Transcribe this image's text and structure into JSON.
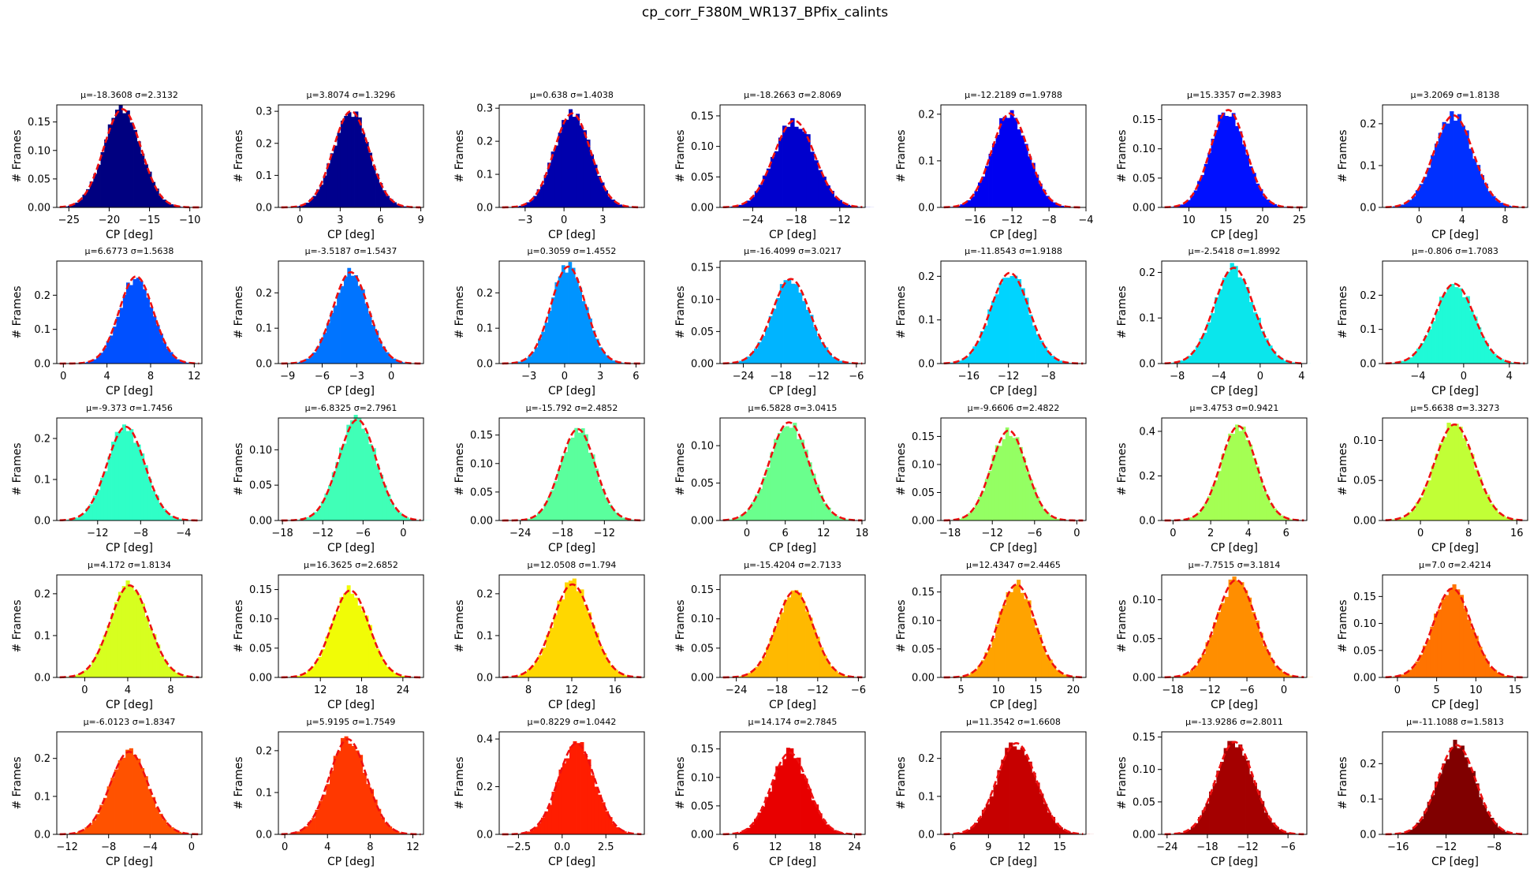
{
  "suptitle": "cp_corr_F380M_WR137_BPfix_calints",
  "xlabel": "CP [deg]",
  "ylabel": "# Frames",
  "fit_line_color": "#ee1111",
  "chart_data": [
    {
      "type": "bar",
      "title": "μ=-18.3608 σ=2.3132",
      "mu": -18.3608,
      "sigma": 2.3132,
      "color": "#000080",
      "xlim": [
        -26.5,
        -8.5
      ],
      "xticks": [
        -25,
        -20,
        -15,
        -10
      ],
      "ylim": [
        0,
        0.18
      ],
      "yticks": [
        0,
        0.05,
        0.1,
        0.15
      ],
      "yticklabels": [
        "0.00",
        "0.05",
        "0.10",
        "0.15"
      ],
      "xlabel": "CP [deg]",
      "ylabel": "# Frames"
    },
    {
      "type": "bar",
      "title": "μ=3.8074 σ=1.3296",
      "mu": 3.8074,
      "sigma": 1.3296,
      "color": "#00008d",
      "xlim": [
        -1.6,
        9.2
      ],
      "xticks": [
        0,
        3,
        6,
        9
      ],
      "ylim": [
        0,
        0.32
      ],
      "yticks": [
        0,
        0.1,
        0.2,
        0.3
      ],
      "yticklabels": [
        "0.0",
        "0.1",
        "0.2",
        "0.3"
      ],
      "xlabel": "CP [deg]",
      "ylabel": "# Frames"
    },
    {
      "type": "bar",
      "title": "μ=0.638 σ=1.4038",
      "mu": 0.638,
      "sigma": 1.4038,
      "color": "#0000ad",
      "xlim": [
        -5.0,
        6.2
      ],
      "xticks": [
        -3,
        0,
        3
      ],
      "ylim": [
        0,
        0.31
      ],
      "yticks": [
        0,
        0.1,
        0.2,
        0.3
      ],
      "yticklabels": [
        "0.0",
        "0.1",
        "0.2",
        "0.3"
      ],
      "xlabel": "CP [deg]",
      "ylabel": "# Frames"
    },
    {
      "type": "bar",
      "title": "μ=-18.2663 σ=2.8069",
      "mu": -18.2663,
      "sigma": 2.8069,
      "color": "#0000cd",
      "xlim": [
        -28.5,
        -8.5
      ],
      "xticks": [
        -24,
        -18,
        -12
      ],
      "ylim": [
        0,
        0.168
      ],
      "yticks": [
        0,
        0.05,
        0.1,
        0.15
      ],
      "yticklabels": [
        "0.00",
        "0.05",
        "0.10",
        "0.15"
      ],
      "xlabel": "CP [deg]",
      "ylabel": "# Frames"
    },
    {
      "type": "bar",
      "title": "μ=-12.2189 σ=1.9788",
      "mu": -12.2189,
      "sigma": 1.9788,
      "color": "#0000f1",
      "xlim": [
        -19.7,
        -4.0
      ],
      "xticks": [
        -16,
        -12,
        -8,
        -4
      ],
      "ylim": [
        0,
        0.22
      ],
      "yticks": [
        0,
        0.1,
        0.2
      ],
      "yticklabels": [
        "0.0",
        "0.1",
        "0.2"
      ],
      "xlabel": "CP [deg]",
      "ylabel": "# Frames"
    },
    {
      "type": "bar",
      "title": "μ=15.3357 σ=2.3983",
      "mu": 15.3357,
      "sigma": 2.3983,
      "color": "#0010ff",
      "xlim": [
        6.3,
        26.0
      ],
      "xticks": [
        10,
        15,
        20,
        25
      ],
      "ylim": [
        0,
        0.175
      ],
      "yticks": [
        0,
        0.05,
        0.1,
        0.15
      ],
      "yticklabels": [
        "0.00",
        "0.05",
        "0.10",
        "0.15"
      ],
      "xlabel": "CP [deg]",
      "ylabel": "# Frames"
    },
    {
      "type": "bar",
      "title": "μ=3.2069 σ=1.8138",
      "mu": 3.2069,
      "sigma": 1.8138,
      "color": "#0030ff",
      "xlim": [
        -3.4,
        10.1
      ],
      "xticks": [
        0,
        4,
        8
      ],
      "ylim": [
        0,
        0.245
      ],
      "yticks": [
        0,
        0.1,
        0.2
      ],
      "yticklabels": [
        "0.0",
        "0.1",
        "0.2"
      ],
      "xlabel": "CP [deg]",
      "ylabel": "# Frames"
    },
    {
      "type": "bar",
      "title": "μ=6.6773 σ=1.5638",
      "mu": 6.6773,
      "sigma": 1.5638,
      "color": "#0050ff",
      "xlim": [
        -0.6,
        12.7
      ],
      "xticks": [
        0,
        4,
        8,
        12
      ],
      "ylim": [
        0,
        0.3
      ],
      "yticks": [
        0,
        0.1,
        0.2
      ],
      "yticklabels": [
        "0.0",
        "0.1",
        "0.2"
      ],
      "xlabel": "CP [deg]",
      "ylabel": "# Frames"
    },
    {
      "type": "bar",
      "title": "μ=-3.5187 σ=1.5437",
      "mu": -3.5187,
      "sigma": 1.5437,
      "color": "#0074ff",
      "xlim": [
        -9.8,
        2.8
      ],
      "xticks": [
        -9,
        -6,
        -3,
        0
      ],
      "ylim": [
        0,
        0.29
      ],
      "yticks": [
        0,
        0.1,
        0.2
      ],
      "yticklabels": [
        "0.0",
        "0.1",
        "0.2"
      ],
      "xlabel": "CP [deg]",
      "ylabel": "# Frames"
    },
    {
      "type": "bar",
      "title": "μ=0.3059 σ=1.4552",
      "mu": 0.3059,
      "sigma": 1.4552,
      "color": "#0094ff",
      "xlim": [
        -5.5,
        6.7
      ],
      "xticks": [
        -3,
        0,
        3,
        6
      ],
      "ylim": [
        0,
        0.29
      ],
      "yticks": [
        0,
        0.1,
        0.2
      ],
      "yticklabels": [
        "0.0",
        "0.1",
        "0.2"
      ],
      "xlabel": "CP [deg]",
      "ylabel": "# Frames"
    },
    {
      "type": "bar",
      "title": "μ=-16.4099 σ=3.0217",
      "mu": -16.4099,
      "sigma": 3.0217,
      "color": "#00b4ff",
      "xlim": [
        -27.7,
        -4.6
      ],
      "xticks": [
        -24,
        -18,
        -12,
        -6
      ],
      "ylim": [
        0,
        0.16
      ],
      "yticks": [
        0,
        0.05,
        0.1,
        0.15
      ],
      "yticklabels": [
        "0.00",
        "0.05",
        "0.10",
        "0.15"
      ],
      "xlabel": "CP [deg]",
      "ylabel": "# Frames"
    },
    {
      "type": "bar",
      "title": "μ=-11.8543 σ=1.9188",
      "mu": -11.8543,
      "sigma": 1.9188,
      "color": "#00d4ff",
      "xlim": [
        -18.8,
        -4.2
      ],
      "xticks": [
        -16,
        -12,
        -8
      ],
      "ylim": [
        0,
        0.235
      ],
      "yticks": [
        0,
        0.1,
        0.2
      ],
      "yticklabels": [
        "0.0",
        "0.1",
        "0.2"
      ],
      "xlabel": "CP [deg]",
      "ylabel": "# Frames"
    },
    {
      "type": "bar",
      "title": "μ=-2.5418 σ=1.8992",
      "mu": -2.5418,
      "sigma": 1.8992,
      "color": "#0ae6ec",
      "xlim": [
        -9.5,
        4.5
      ],
      "xticks": [
        -8,
        -4,
        0,
        4
      ],
      "ylim": [
        0,
        0.225
      ],
      "yticks": [
        0,
        0.1,
        0.2
      ],
      "yticklabels": [
        "0.0",
        "0.1",
        "0.2"
      ],
      "xlabel": "CP [deg]",
      "ylabel": "# Frames"
    },
    {
      "type": "bar",
      "title": "μ=-0.806 σ=1.7083",
      "mu": -0.806,
      "sigma": 1.7083,
      "color": "#1ffad7",
      "xlim": [
        -7.1,
        5.6
      ],
      "xticks": [
        -4,
        0,
        4
      ],
      "ylim": [
        0,
        0.3
      ],
      "yticks": [
        0,
        0.1,
        0.2
      ],
      "yticklabels": [
        "0.0",
        "0.1",
        "0.2"
      ],
      "xlabel": "CP [deg]",
      "ylabel": "# Frames"
    },
    {
      "type": "bar",
      "title": "μ=-9.373 σ=1.7456",
      "mu": -9.373,
      "sigma": 1.7456,
      "color": "#2fffc7",
      "xlim": [
        -15.8,
        -2.3
      ],
      "xticks": [
        -12,
        -8,
        -4
      ],
      "ylim": [
        0,
        0.25
      ],
      "yticks": [
        0,
        0.1,
        0.2
      ],
      "yticklabels": [
        "0.0",
        "0.1",
        "0.2"
      ],
      "xlabel": "CP [deg]",
      "ylabel": "# Frames"
    },
    {
      "type": "bar",
      "title": "μ=-6.8325 σ=2.7961",
      "mu": -6.8325,
      "sigma": 2.7961,
      "color": "#40ffb7",
      "xlim": [
        -18.6,
        3.0
      ],
      "xticks": [
        -18,
        -12,
        -6,
        0
      ],
      "ylim": [
        0,
        0.145
      ],
      "yticks": [
        0,
        0.05,
        0.1
      ],
      "yticklabels": [
        "0.00",
        "0.05",
        "0.10"
      ],
      "xlabel": "CP [deg]",
      "ylabel": "# Frames"
    },
    {
      "type": "bar",
      "title": "μ=-15.792 σ=2.4852",
      "mu": -15.792,
      "sigma": 2.4852,
      "color": "#5aff9d",
      "xlim": [
        -27.0,
        -6.3
      ],
      "xticks": [
        -24,
        -18,
        -12
      ],
      "ylim": [
        0,
        0.18
      ],
      "yticks": [
        0,
        0.05,
        0.1,
        0.15
      ],
      "yticklabels": [
        "0.00",
        "0.05",
        "0.10",
        "0.15"
      ],
      "xlabel": "CP [deg]",
      "ylabel": "# Frames"
    },
    {
      "type": "bar",
      "title": "μ=6.5828 σ=3.0415",
      "mu": 6.5828,
      "sigma": 3.0415,
      "color": "#6aff8d",
      "xlim": [
        -4.2,
        18.5
      ],
      "xticks": [
        0,
        6,
        12,
        18
      ],
      "ylim": [
        0,
        0.137
      ],
      "yticks": [
        0,
        0.05,
        0.1
      ],
      "yticklabels": [
        "0.00",
        "0.05",
        "0.10"
      ],
      "xlabel": "CP [deg]",
      "ylabel": "# Frames"
    },
    {
      "type": "bar",
      "title": "μ=-9.6606 σ=2.4822",
      "mu": -9.6606,
      "sigma": 2.4822,
      "color": "#94ff63",
      "xlim": [
        -19.3,
        1.3
      ],
      "xticks": [
        -18,
        -12,
        -6,
        0
      ],
      "ylim": [
        0,
        0.183
      ],
      "yticks": [
        0,
        0.05,
        0.1,
        0.15
      ],
      "yticklabels": [
        "0.00",
        "0.05",
        "0.10",
        "0.15"
      ],
      "xlabel": "CP [deg]",
      "ylabel": "# Frames"
    },
    {
      "type": "bar",
      "title": "μ=3.4753 σ=0.9421",
      "mu": 3.4753,
      "sigma": 0.9421,
      "color": "#a4ff53",
      "xlim": [
        -0.6,
        7.1
      ],
      "xticks": [
        0,
        2,
        4,
        6
      ],
      "ylim": [
        0,
        0.46
      ],
      "yticks": [
        0,
        0.2,
        0.4
      ],
      "yticklabels": [
        "0.0",
        "0.2",
        "0.4"
      ],
      "xlabel": "CP [deg]",
      "ylabel": "# Frames"
    },
    {
      "type": "bar",
      "title": "μ=5.6638 σ=3.3273",
      "mu": 5.6638,
      "sigma": 3.3273,
      "color": "#c1ff36",
      "xlim": [
        -6.3,
        17.8
      ],
      "xticks": [
        0,
        8,
        16
      ],
      "ylim": [
        0,
        0.128
      ],
      "yticks": [
        0,
        0.05,
        0.1
      ],
      "yticklabels": [
        "0.00",
        "0.05",
        "0.10"
      ],
      "xlabel": "CP [deg]",
      "ylabel": "# Frames"
    },
    {
      "type": "bar",
      "title": "μ=4.172 σ=1.8134",
      "mu": 4.172,
      "sigma": 1.8134,
      "color": "#d7ff1f",
      "xlim": [
        -2.6,
        10.9
      ],
      "xticks": [
        0,
        4,
        8
      ],
      "ylim": [
        0,
        0.245
      ],
      "yticks": [
        0,
        0.1,
        0.2
      ],
      "yticklabels": [
        "0.0",
        "0.1",
        "0.2"
      ],
      "xlabel": "CP [deg]",
      "ylabel": "# Frames"
    },
    {
      "type": "bar",
      "title": "μ=16.3625 σ=2.6852",
      "mu": 16.3625,
      "sigma": 2.6852,
      "color": "#f1fc06",
      "xlim": [
        5.9,
        27.0
      ],
      "xticks": [
        12,
        18,
        24
      ],
      "ylim": [
        0,
        0.175
      ],
      "yticks": [
        0,
        0.05,
        0.1,
        0.15
      ],
      "yticklabels": [
        "0.00",
        "0.05",
        "0.10",
        "0.15"
      ],
      "xlabel": "CP [deg]",
      "ylabel": "# Frames"
    },
    {
      "type": "bar",
      "title": "μ=12.0508 σ=1.794",
      "mu": 12.0508,
      "sigma": 1.794,
      "color": "#ffd700",
      "xlim": [
        5.3,
        18.7
      ],
      "xticks": [
        8,
        12,
        16
      ],
      "ylim": [
        0,
        0.245
      ],
      "yticks": [
        0,
        0.1,
        0.2
      ],
      "yticklabels": [
        "0.0",
        "0.1",
        "0.2"
      ],
      "xlabel": "CP [deg]",
      "ylabel": "# Frames"
    },
    {
      "type": "bar",
      "title": "μ=-15.4204 σ=2.7133",
      "mu": -15.4204,
      "sigma": 2.7133,
      "color": "#ffb900",
      "xlim": [
        -26.4,
        -5.0
      ],
      "xticks": [
        -24,
        -18,
        -12,
        -6
      ],
      "ylim": [
        0,
        0.175
      ],
      "yticks": [
        0,
        0.05,
        0.1,
        0.15
      ],
      "yticklabels": [
        "0.00",
        "0.05",
        "0.10",
        "0.15"
      ],
      "xlabel": "CP [deg]",
      "ylabel": "# Frames"
    },
    {
      "type": "bar",
      "title": "μ=12.4347 σ=2.4465",
      "mu": 12.4347,
      "sigma": 2.4465,
      "color": "#ffa300",
      "xlim": [
        2.3,
        21.7
      ],
      "xticks": [
        5,
        10,
        15,
        20
      ],
      "ylim": [
        0,
        0.18
      ],
      "yticks": [
        0,
        0.05,
        0.1,
        0.15
      ],
      "yticklabels": [
        "0.00",
        "0.05",
        "0.10",
        "0.15"
      ],
      "xlabel": "CP [deg]",
      "ylabel": "# Frames"
    },
    {
      "type": "bar",
      "title": "μ=-7.7515 σ=3.1814",
      "mu": -7.7515,
      "sigma": 3.1814,
      "color": "#ff8e00",
      "xlim": [
        -19.8,
        3.7
      ],
      "xticks": [
        -18,
        -12,
        -6,
        0
      ],
      "ylim": [
        0,
        0.132
      ],
      "yticks": [
        0,
        0.05,
        0.1
      ],
      "yticklabels": [
        "0.00",
        "0.05",
        "0.10"
      ],
      "xlabel": "CP [deg]",
      "ylabel": "# Frames"
    },
    {
      "type": "bar",
      "title": "μ=7.0 σ=2.4214",
      "mu": 7.0,
      "sigma": 2.4214,
      "color": "#ff7300",
      "xlim": [
        -1.9,
        16.6
      ],
      "xticks": [
        0,
        5,
        10,
        15
      ],
      "ylim": [
        0,
        0.19
      ],
      "yticks": [
        0,
        0.05,
        0.1,
        0.15
      ],
      "yticklabels": [
        "0.00",
        "0.05",
        "0.10",
        "0.15"
      ],
      "xlabel": "CP [deg]",
      "ylabel": "# Frames"
    },
    {
      "type": "bar",
      "title": "μ=-6.0123 σ=1.8347",
      "mu": -6.0123,
      "sigma": 1.8347,
      "color": "#ff5200",
      "xlim": [
        -13.0,
        1.0
      ],
      "xticks": [
        -12,
        -8,
        -4,
        0
      ],
      "ylim": [
        0,
        0.27
      ],
      "yticks": [
        0,
        0.1,
        0.2
      ],
      "yticklabels": [
        "0.0",
        "0.1",
        "0.2"
      ],
      "xlabel": "CP [deg]",
      "ylabel": "# Frames"
    },
    {
      "type": "bar",
      "title": "μ=5.9195 σ=1.7549",
      "mu": 5.9195,
      "sigma": 1.7549,
      "color": "#ff3800",
      "xlim": [
        -0.6,
        13.0
      ],
      "xticks": [
        0,
        4,
        8,
        12
      ],
      "ylim": [
        0,
        0.245
      ],
      "yticks": [
        0,
        0.1,
        0.2
      ],
      "yticklabels": [
        "0.0",
        "0.1",
        "0.2"
      ],
      "xlabel": "CP [deg]",
      "ylabel": "# Frames"
    },
    {
      "type": "bar",
      "title": "μ=0.8229 σ=1.0442",
      "mu": 0.8229,
      "sigma": 1.0442,
      "color": "#ff1d00",
      "xlim": [
        -3.6,
        4.7
      ],
      "xticks": [
        -2.5,
        0,
        2.5
      ],
      "xticklabels": [
        "−2.5",
        "0.0",
        "2.5"
      ],
      "ylim": [
        0,
        0.43
      ],
      "yticks": [
        0,
        0.2,
        0.4
      ],
      "yticklabels": [
        "0.0",
        "0.2",
        "0.4"
      ],
      "xlabel": "CP [deg]",
      "ylabel": "# Frames"
    },
    {
      "type": "bar",
      "title": "μ=14.174 σ=2.7845",
      "mu": 14.174,
      "sigma": 2.7845,
      "color": "#e80000",
      "xlim": [
        3.6,
        25.6
      ],
      "xticks": [
        6,
        12,
        18,
        24
      ],
      "ylim": [
        0,
        0.18
      ],
      "yticks": [
        0,
        0.05,
        0.1,
        0.15
      ],
      "yticklabels": [
        "0.00",
        "0.05",
        "0.10",
        "0.15"
      ],
      "xlabel": "CP [deg]",
      "ylabel": "# Frames"
    },
    {
      "type": "bar",
      "title": "μ=11.3542 σ=1.6608",
      "mu": 11.3542,
      "sigma": 1.6608,
      "color": "#c60000",
      "xlim": [
        5.0,
        17.2
      ],
      "xticks": [
        6,
        9,
        12,
        15
      ],
      "ylim": [
        0,
        0.27
      ],
      "yticks": [
        0,
        0.1,
        0.2
      ],
      "yticklabels": [
        "0.0",
        "0.1",
        "0.2"
      ],
      "xlabel": "CP [deg]",
      "ylabel": "# Frames"
    },
    {
      "type": "bar",
      "title": "μ=-13.9286 σ=2.8011",
      "mu": -13.9286,
      "sigma": 2.8011,
      "color": "#a40000",
      "xlim": [
        -24.8,
        -3.2
      ],
      "xticks": [
        -24,
        -18,
        -12,
        -6
      ],
      "ylim": [
        0,
        0.158
      ],
      "yticks": [
        0,
        0.05,
        0.1,
        0.15
      ],
      "yticklabels": [
        "0.00",
        "0.05",
        "0.10",
        "0.15"
      ],
      "xlabel": "CP [deg]",
      "ylabel": "# Frames"
    },
    {
      "type": "bar",
      "title": "μ=-11.1088 σ=1.5813",
      "mu": -11.1088,
      "sigma": 1.5813,
      "color": "#800000",
      "xlim": [
        -17.3,
        -5.2
      ],
      "xticks": [
        -16,
        -12,
        -8
      ],
      "ylim": [
        0,
        0.29
      ],
      "yticks": [
        0,
        0.1,
        0.2
      ],
      "yticklabels": [
        "0.0",
        "0.1",
        "0.2"
      ],
      "xlabel": "CP [deg]",
      "ylabel": "# Frames"
    }
  ]
}
